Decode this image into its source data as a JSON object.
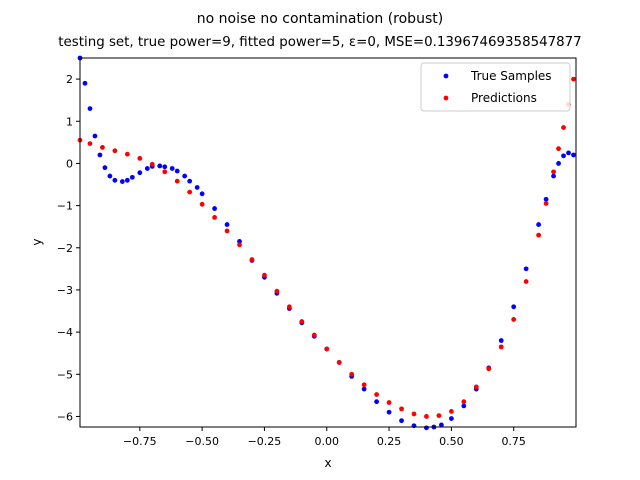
{
  "chart_data": {
    "type": "scatter",
    "title": "no noise no contamination (robust)",
    "subtitle": "testing set, true power=9, fitted power=5, ε=0, MSE=0.13967469358547877",
    "xlabel": "x",
    "ylabel": "y",
    "xlim": [
      -0.99,
      1.0
    ],
    "ylim": [
      -6.25,
      2.5
    ],
    "xticks": [
      -0.75,
      -0.5,
      -0.25,
      0.0,
      0.25,
      0.5,
      0.75
    ],
    "xtick_labels": [
      "−0.75",
      "−0.50",
      "−0.25",
      "0.00",
      "0.25",
      "0.50",
      "0.75"
    ],
    "yticks": [
      -6,
      -5,
      -4,
      -3,
      -2,
      -1,
      0,
      1,
      2
    ],
    "ytick_labels": [
      "−6",
      "−5",
      "−4",
      "−3",
      "−2",
      "−1",
      "0",
      "1",
      "2"
    ],
    "grid": false,
    "legend_position": "top-right",
    "series": [
      {
        "name": "True Samples",
        "color": "#0000ff",
        "x": [
          -0.99,
          -0.97,
          -0.95,
          -0.93,
          -0.91,
          -0.89,
          -0.87,
          -0.85,
          -0.82,
          -0.8,
          -0.78,
          -0.75,
          -0.72,
          -0.7,
          -0.67,
          -0.65,
          -0.62,
          -0.6,
          -0.57,
          -0.55,
          -0.52,
          -0.5,
          -0.45,
          -0.4,
          -0.35,
          -0.3,
          -0.25,
          -0.2,
          -0.15,
          -0.1,
          -0.05,
          0.0,
          0.05,
          0.1,
          0.15,
          0.2,
          0.25,
          0.3,
          0.35,
          0.4,
          0.43,
          0.46,
          0.5,
          0.55,
          0.6,
          0.65,
          0.7,
          0.75,
          0.8,
          0.85,
          0.88,
          0.91,
          0.93,
          0.95,
          0.97,
          0.99
        ],
        "y": [
          2.5,
          1.9,
          1.3,
          0.65,
          0.2,
          -0.1,
          -0.3,
          -0.4,
          -0.43,
          -0.4,
          -0.33,
          -0.22,
          -0.12,
          -0.07,
          -0.06,
          -0.08,
          -0.12,
          -0.18,
          -0.3,
          -0.42,
          -0.57,
          -0.72,
          -1.07,
          -1.45,
          -1.85,
          -2.3,
          -2.7,
          -3.08,
          -3.44,
          -3.78,
          -4.1,
          -4.4,
          -4.72,
          -5.05,
          -5.35,
          -5.65,
          -5.9,
          -6.1,
          -6.22,
          -6.27,
          -6.25,
          -6.2,
          -6.05,
          -5.75,
          -5.35,
          -4.85,
          -4.2,
          -3.4,
          -2.5,
          -1.45,
          -0.85,
          -0.3,
          0.0,
          0.18,
          0.25,
          0.2
        ]
      },
      {
        "name": "Predictions",
        "color": "#ff0000",
        "x": [
          -0.99,
          -0.95,
          -0.9,
          -0.85,
          -0.8,
          -0.75,
          -0.7,
          -0.65,
          -0.6,
          -0.55,
          -0.5,
          -0.45,
          -0.4,
          -0.35,
          -0.3,
          -0.25,
          -0.2,
          -0.15,
          -0.1,
          -0.05,
          0.0,
          0.05,
          0.1,
          0.15,
          0.2,
          0.25,
          0.3,
          0.35,
          0.4,
          0.45,
          0.5,
          0.55,
          0.6,
          0.65,
          0.7,
          0.75,
          0.8,
          0.85,
          0.88,
          0.91,
          0.93,
          0.95,
          0.97,
          0.99
        ],
        "y": [
          0.55,
          0.47,
          0.38,
          0.3,
          0.22,
          0.12,
          -0.02,
          -0.2,
          -0.42,
          -0.68,
          -0.97,
          -1.28,
          -1.6,
          -1.93,
          -2.28,
          -2.65,
          -3.03,
          -3.4,
          -3.75,
          -4.07,
          -4.4,
          -4.72,
          -5.0,
          -5.25,
          -5.48,
          -5.67,
          -5.82,
          -5.94,
          -6.0,
          -5.98,
          -5.88,
          -5.65,
          -5.3,
          -4.87,
          -4.35,
          -3.7,
          -2.8,
          -1.7,
          -0.95,
          -0.2,
          0.35,
          0.85,
          1.4,
          2.0
        ]
      }
    ]
  }
}
